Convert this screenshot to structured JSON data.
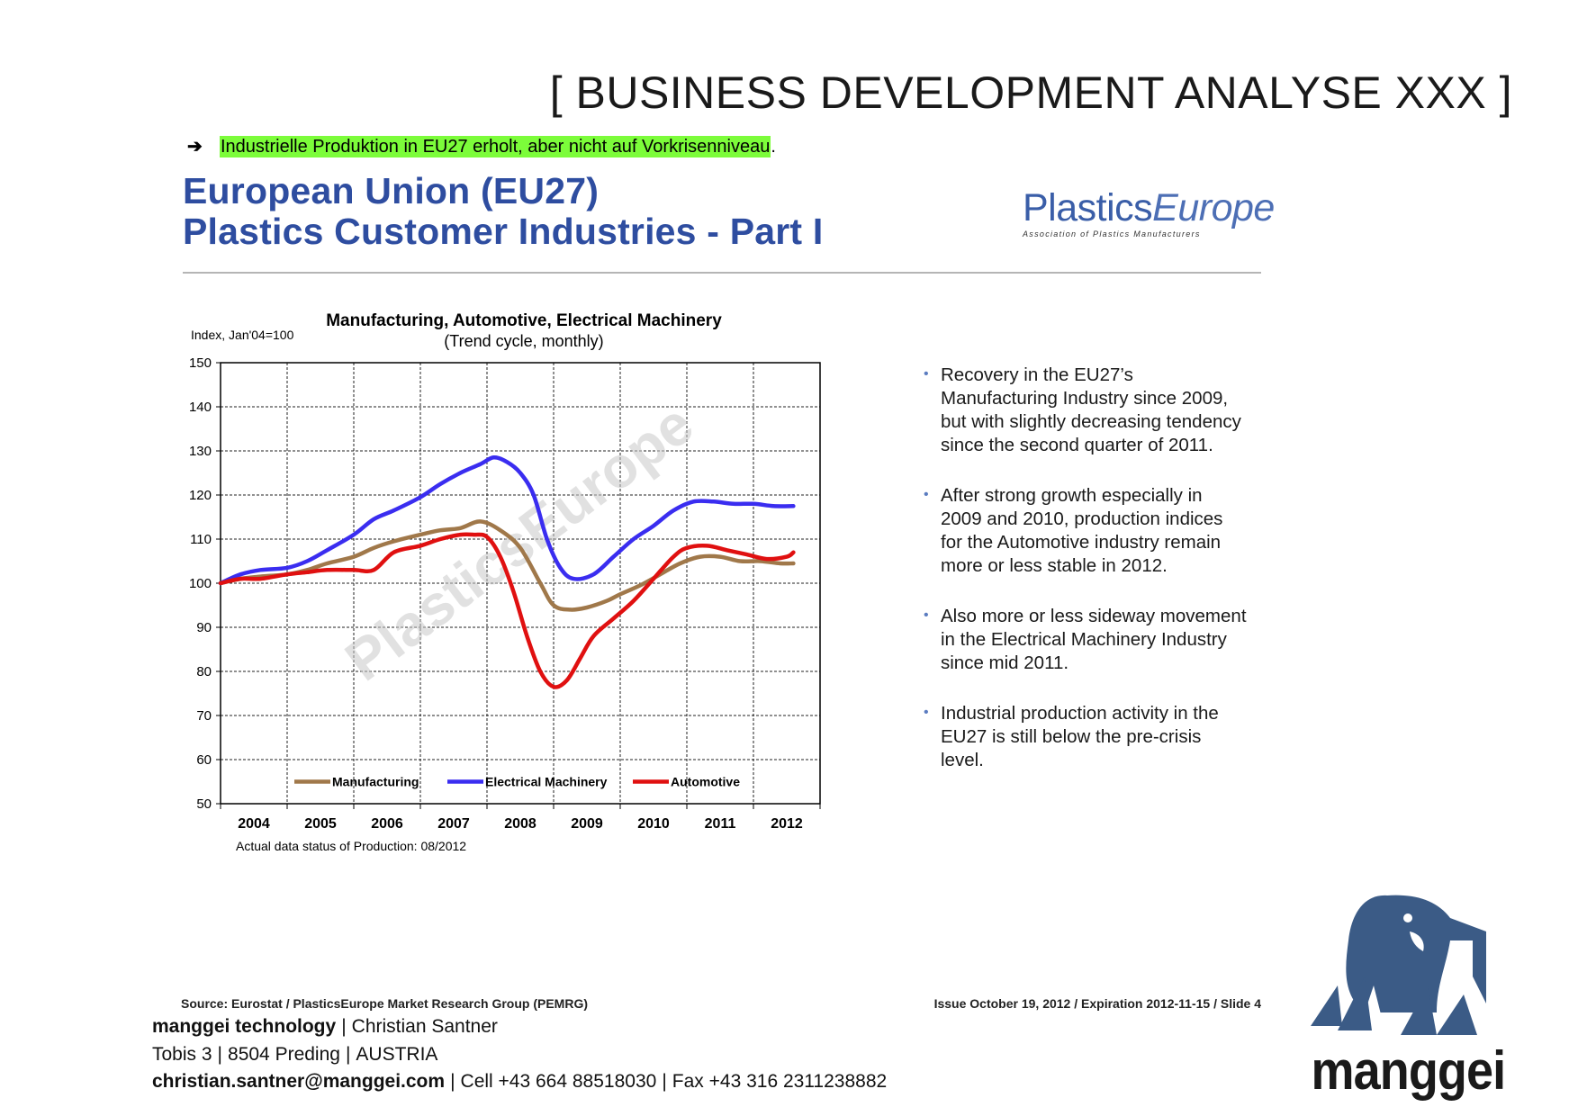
{
  "header": {
    "title": "[ BUSINESS DEVELOPMENT ANALYSE XXX ]"
  },
  "intro": {
    "arrow": "➔",
    "highlighted_text": "Industrielle Produktion in EU27 erholt, aber nicht auf Vorkrisenniveau",
    "trailing": "."
  },
  "slide": {
    "title_line1": "European Union (EU27)",
    "title_line2": "Plastics Customer Industries - Part I",
    "logo_name_a": "Plastics",
    "logo_name_b": "Europe",
    "logo_tagline": "Association of Plastics Manufacturers",
    "watermark": "PlasticsEurope",
    "data_status": "Actual data status of Production: 08/2012",
    "source": "Source: Eurostat / PlasticsEurope Market Research Group (PEMRG)",
    "issue": "Issue October 19, 2012 / Expiration 2012-11-15 / Slide 4"
  },
  "chart_data": {
    "type": "line",
    "title": "Manufacturing, Automotive, Electrical Machinery",
    "subtitle": "(Trend cycle, monthly)",
    "ylabel": "Index, Jan'04=100",
    "xlabel": "",
    "ylim": [
      50,
      150
    ],
    "yticks": [
      50,
      60,
      70,
      80,
      90,
      100,
      110,
      120,
      130,
      140,
      150
    ],
    "xlim": [
      2004.0,
      2013.0
    ],
    "xtick_labels": [
      "2004",
      "2005",
      "2006",
      "2007",
      "2008",
      "2009",
      "2010",
      "2011",
      "2012"
    ],
    "grid": true,
    "legend_position": "bottom-inside",
    "series": [
      {
        "name": "Manufacturing",
        "color": "#a0784a",
        "x": [
          2004.0,
          2004.3,
          2004.6,
          2005.0,
          2005.3,
          2005.6,
          2006.0,
          2006.3,
          2006.6,
          2007.0,
          2007.3,
          2007.6,
          2007.9,
          2008.2,
          2008.5,
          2008.8,
          2009.0,
          2009.25,
          2009.5,
          2009.8,
          2010.0,
          2010.3,
          2010.6,
          2010.9,
          2011.2,
          2011.5,
          2011.8,
          2012.1,
          2012.4,
          2012.6
        ],
        "y": [
          100,
          101,
          101.5,
          102,
          103,
          104.5,
          106,
          108,
          109.5,
          111,
          112,
          112.5,
          114,
          112,
          108,
          100,
          95,
          94,
          94.5,
          96,
          97.5,
          99.5,
          102,
          104.5,
          106,
          106,
          105,
          105,
          104.5,
          104.5
        ]
      },
      {
        "name": "Electrical Machinery",
        "color": "#3a2df0",
        "x": [
          2004.0,
          2004.3,
          2004.6,
          2005.0,
          2005.3,
          2005.6,
          2006.0,
          2006.3,
          2006.6,
          2007.0,
          2007.3,
          2007.6,
          2007.9,
          2008.1,
          2008.3,
          2008.5,
          2008.7,
          2008.9,
          2009.1,
          2009.3,
          2009.6,
          2009.9,
          2010.2,
          2010.5,
          2010.8,
          2011.1,
          2011.4,
          2011.7,
          2012.0,
          2012.3,
          2012.6
        ],
        "y": [
          100,
          102,
          103,
          103.5,
          105,
          107.5,
          111,
          114.5,
          116.5,
          119.5,
          122.5,
          125,
          127,
          128.5,
          127.5,
          125,
          120,
          110,
          103.5,
          101,
          102,
          106,
          110,
          113,
          116.5,
          118.5,
          118.5,
          118,
          118,
          117.5,
          117.5
        ]
      },
      {
        "name": "Automotive",
        "color": "#e01010",
        "x": [
          2004.0,
          2004.3,
          2004.6,
          2005.0,
          2005.3,
          2005.6,
          2006.0,
          2006.3,
          2006.6,
          2007.0,
          2007.3,
          2007.6,
          2007.8,
          2008.0,
          2008.2,
          2008.4,
          2008.6,
          2008.8,
          2009.0,
          2009.2,
          2009.4,
          2009.6,
          2009.9,
          2010.2,
          2010.5,
          2010.8,
          2011.0,
          2011.3,
          2011.6,
          2011.9,
          2012.2,
          2012.5,
          2012.6
        ],
        "y": [
          100,
          101,
          101,
          102,
          102.5,
          103,
          103,
          103,
          107,
          108.5,
          110,
          111,
          111,
          110.5,
          106,
          98,
          88,
          80,
          76.5,
          78,
          83,
          88,
          92,
          96,
          101,
          106,
          108,
          108.5,
          107.5,
          106.5,
          105.5,
          106,
          107
        ]
      }
    ]
  },
  "side_bullets": [
    "Recovery in the EU27’s Manufacturing Industry since 2009, but with slightly decreasing tendency since the second quarter of 2011.",
    "After strong growth especially in 2009 and 2010, production indices for the Automotive industry remain more or less stable in 2012.",
    "Also more or less sideway movement in the Electrical Machinery Industry since mid 2011.",
    "Industrial production activity in the EU27 is still below the pre-crisis level."
  ],
  "contact": {
    "company": "manggei technology",
    "person": "Christian Santner",
    "street": "Tobis 3",
    "city": "8504 Preding",
    "country": "AUSTRIA",
    "email": "christian.santner@manggei.com",
    "cell": "Cell +43 664 88518030",
    "fax": "Fax +43 316 2311238882",
    "separator": "|"
  },
  "brand": {
    "name": "manggei",
    "color": "#3b5b86"
  }
}
